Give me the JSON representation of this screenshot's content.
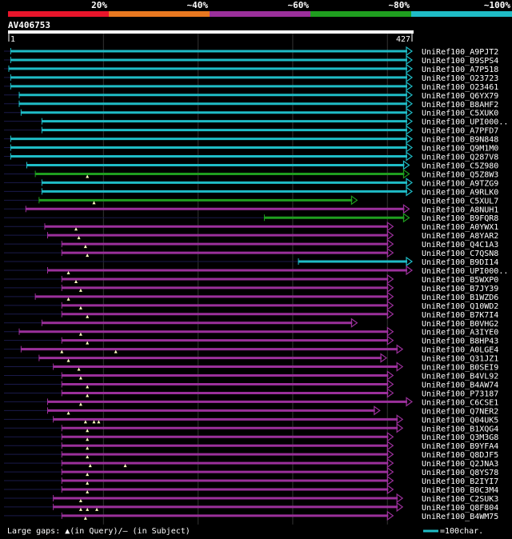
{
  "chart_data": {
    "type": "alignment-overview",
    "query_name": "AV406753",
    "query_start": "1",
    "query_end": "427",
    "query_length": 427,
    "identity_legend": [
      {
        "label": "20%",
        "color": "#e8152b"
      },
      {
        "label": "~40%",
        "color": "#e87820"
      },
      {
        "label": "~60%",
        "color": "#9b309b"
      },
      {
        "label": "~80%",
        "color": "#1f9e1f"
      },
      {
        "label": "~100%",
        "color": "#1fbcc6"
      }
    ],
    "bottom_legend": "Large gaps: ▲(in Query)/– (in Subject)",
    "scale_legend": "=100char.",
    "hits": [
      {
        "name": "UniRef100_A9PJT2",
        "start": 3,
        "end": 427,
        "color": "#1fbcc6",
        "tip": "open",
        "gaps": []
      },
      {
        "name": "UniRef100_B9SPS4",
        "start": 3,
        "end": 427,
        "color": "#1fbcc6",
        "tip": "open",
        "gaps": []
      },
      {
        "name": "UniRef100_A7P518",
        "start": 1,
        "end": 427,
        "color": "#1fbcc6",
        "tip": "open",
        "gaps": []
      },
      {
        "name": "UniRef100_O23723",
        "start": 3,
        "end": 427,
        "color": "#1fbcc6",
        "tip": "open",
        "gaps": []
      },
      {
        "name": "UniRef100_O23461",
        "start": 3,
        "end": 427,
        "color": "#1fbcc6",
        "tip": "open",
        "gaps": []
      },
      {
        "name": "UniRef100_Q6YX79",
        "start": 12,
        "end": 427,
        "color": "#1fbcc6",
        "tip": "open",
        "gaps": []
      },
      {
        "name": "UniRef100_B8AHF2",
        "start": 12,
        "end": 427,
        "color": "#1fbcc6",
        "tip": "open",
        "gaps": []
      },
      {
        "name": "UniRef100_C5XUK0",
        "start": 14,
        "end": 427,
        "color": "#1fbcc6",
        "tip": "open",
        "gaps": []
      },
      {
        "name": "UniRef100_UPI000..",
        "start": 36,
        "end": 427,
        "color": "#1fbcc6",
        "tip": "open",
        "gaps": []
      },
      {
        "name": "UniRef100_A7PFD7",
        "start": 36,
        "end": 427,
        "color": "#1fbcc6",
        "tip": "open",
        "gaps": []
      },
      {
        "name": "UniRef100_B9N848",
        "start": 3,
        "end": 427,
        "color": "#1fbcc6",
        "tip": "open",
        "gaps": []
      },
      {
        "name": "UniRef100_Q9M1M0",
        "start": 3,
        "end": 427,
        "color": "#1fbcc6",
        "tip": "open",
        "gaps": []
      },
      {
        "name": "UniRef100_Q287V8",
        "start": 3,
        "end": 427,
        "color": "#1fbcc6",
        "tip": "open",
        "gaps": []
      },
      {
        "name": "UniRef100_C5Z980",
        "start": 20,
        "end": 424,
        "color": "#1fbcc6",
        "tip": "open",
        "gaps": []
      },
      {
        "name": "UniRef100_Q5Z8W3",
        "start": 29,
        "end": 424,
        "color": "#1f9e1f",
        "tip": "open",
        "gaps": [
          84
        ]
      },
      {
        "name": "UniRef100_A9TZG9",
        "start": 36,
        "end": 427,
        "color": "#1fbcc6",
        "tip": "open",
        "gaps": []
      },
      {
        "name": "UniRef100_A9RLK0",
        "start": 36,
        "end": 427,
        "color": "#1fbcc6",
        "tip": "open",
        "gaps": []
      },
      {
        "name": "UniRef100_C5XUL7",
        "start": 33,
        "end": 369,
        "color": "#1f9e1f",
        "tip": "open",
        "gaps": [
          91
        ]
      },
      {
        "name": "UniRef100_A8NUH1",
        "start": 19,
        "end": 424,
        "color": "#9b309b",
        "tip": "open",
        "gaps": []
      },
      {
        "name": "UniRef100_B9FQR8",
        "start": 271,
        "end": 424,
        "color": "#1f9e1f",
        "tip": "open",
        "gaps": []
      },
      {
        "name": "UniRef100_A0YWX1",
        "start": 39,
        "end": 407,
        "color": "#9b309b",
        "tip": "open",
        "gaps": [
          72
        ]
      },
      {
        "name": "UniRef100_A8YAR2",
        "start": 42,
        "end": 407,
        "color": "#9b309b",
        "tip": "open",
        "gaps": [
          75
        ]
      },
      {
        "name": "UniRef100_Q4C1A3",
        "start": 57,
        "end": 407,
        "color": "#9b309b",
        "tip": "open",
        "gaps": [
          82
        ]
      },
      {
        "name": "UniRef100_C7QSN8",
        "start": 57,
        "end": 407,
        "color": "#9b309b",
        "tip": "open",
        "gaps": [
          84
        ]
      },
      {
        "name": "UniRef100_B9DI14",
        "start": 307,
        "end": 427,
        "color": "#1fbcc6",
        "tip": "open",
        "gaps": []
      },
      {
        "name": "UniRef100_UPI000..",
        "start": 42,
        "end": 427,
        "color": "#9b309b",
        "tip": "open",
        "gaps": [
          64
        ]
      },
      {
        "name": "UniRef100_B5WXP0",
        "start": 57,
        "end": 407,
        "color": "#9b309b",
        "tip": "open",
        "gaps": [
          72
        ]
      },
      {
        "name": "UniRef100_B7JY39",
        "start": 57,
        "end": 407,
        "color": "#9b309b",
        "tip": "open",
        "gaps": [
          77
        ]
      },
      {
        "name": "UniRef100_B1WZD6",
        "start": 29,
        "end": 407,
        "color": "#9b309b",
        "tip": "open",
        "gaps": [
          64
        ]
      },
      {
        "name": "UniRef100_Q10WD2",
        "start": 57,
        "end": 407,
        "color": "#9b309b",
        "tip": "open",
        "gaps": [
          77
        ]
      },
      {
        "name": "UniRef100_B7K7I4",
        "start": 57,
        "end": 407,
        "color": "#9b309b",
        "tip": "open",
        "gaps": [
          84
        ]
      },
      {
        "name": "UniRef100_B0VHG2",
        "start": 36,
        "end": 369,
        "color": "#9b309b",
        "tip": "open",
        "gaps": []
      },
      {
        "name": "UniRef100_A3IYE0",
        "start": 12,
        "end": 407,
        "color": "#9b309b",
        "tip": "open",
        "gaps": [
          77
        ]
      },
      {
        "name": "UniRef100_B8HP43",
        "start": 57,
        "end": 407,
        "color": "#9b309b",
        "tip": "open",
        "gaps": [
          84
        ]
      },
      {
        "name": "UniRef100_A0LGE4",
        "start": 14,
        "end": 417,
        "color": "#9b309b",
        "tip": "open",
        "gaps": [
          57,
          114
        ]
      },
      {
        "name": "UniRef100_Q31JZ1",
        "start": 33,
        "end": 400,
        "color": "#9b309b",
        "tip": "open",
        "gaps": [
          64
        ]
      },
      {
        "name": "UniRef100_B0SEI9",
        "start": 48,
        "end": 417,
        "color": "#9b309b",
        "tip": "open",
        "gaps": [
          75
        ]
      },
      {
        "name": "UniRef100_B4VL92",
        "start": 57,
        "end": 407,
        "color": "#9b309b",
        "tip": "open",
        "gaps": [
          77
        ]
      },
      {
        "name": "UniRef100_B4AW74",
        "start": 57,
        "end": 407,
        "color": "#9b309b",
        "tip": "open",
        "gaps": [
          84
        ]
      },
      {
        "name": "UniRef100_P73187",
        "start": 57,
        "end": 407,
        "color": "#9b309b",
        "tip": "open",
        "gaps": [
          84
        ]
      },
      {
        "name": "UniRef100_C6CSE1",
        "start": 42,
        "end": 427,
        "color": "#9b309b",
        "tip": "open",
        "gaps": [
          77
        ]
      },
      {
        "name": "UniRef100_Q7NER2",
        "start": 42,
        "end": 393,
        "color": "#9b309b",
        "tip": "open",
        "gaps": [
          64
        ]
      },
      {
        "name": "UniRef100_Q04UK5",
        "start": 48,
        "end": 417,
        "color": "#9b309b",
        "tip": "open",
        "gaps": [
          82,
          91,
          96
        ]
      },
      {
        "name": "UniRef100_B1XQG4",
        "start": 57,
        "end": 417,
        "color": "#9b309b",
        "tip": "open",
        "gaps": [
          84
        ]
      },
      {
        "name": "UniRef100_Q3M3G8",
        "start": 57,
        "end": 407,
        "color": "#9b309b",
        "tip": "open",
        "gaps": [
          84
        ]
      },
      {
        "name": "UniRef100_B9YFA4",
        "start": 57,
        "end": 407,
        "color": "#9b309b",
        "tip": "open",
        "gaps": [
          84
        ]
      },
      {
        "name": "UniRef100_Q8DJF5",
        "start": 57,
        "end": 407,
        "color": "#9b309b",
        "tip": "open",
        "gaps": [
          84
        ]
      },
      {
        "name": "UniRef100_Q2JNA3",
        "start": 57,
        "end": 407,
        "color": "#9b309b",
        "tip": "open",
        "gaps": [
          87,
          124
        ]
      },
      {
        "name": "UniRef100_Q8YS78",
        "start": 57,
        "end": 407,
        "color": "#9b309b",
        "tip": "open",
        "gaps": [
          84
        ]
      },
      {
        "name": "UniRef100_B2IYI7",
        "start": 57,
        "end": 407,
        "color": "#9b309b",
        "tip": "open",
        "gaps": [
          84
        ]
      },
      {
        "name": "UniRef100_B0C3M4",
        "start": 57,
        "end": 407,
        "color": "#9b309b",
        "tip": "open",
        "gaps": [
          84
        ]
      },
      {
        "name": "UniRef100_C2SUK3",
        "start": 48,
        "end": 417,
        "color": "#9b309b",
        "tip": "open",
        "gaps": [
          77
        ]
      },
      {
        "name": "UniRef100_Q8F804",
        "start": 48,
        "end": 417,
        "color": "#9b309b",
        "tip": "open",
        "gaps": [
          77,
          84,
          94
        ]
      },
      {
        "name": "UniRef100_B4WM75",
        "start": 57,
        "end": 407,
        "color": "#9b309b",
        "tip": "open",
        "gaps": [
          82
        ]
      }
    ]
  }
}
